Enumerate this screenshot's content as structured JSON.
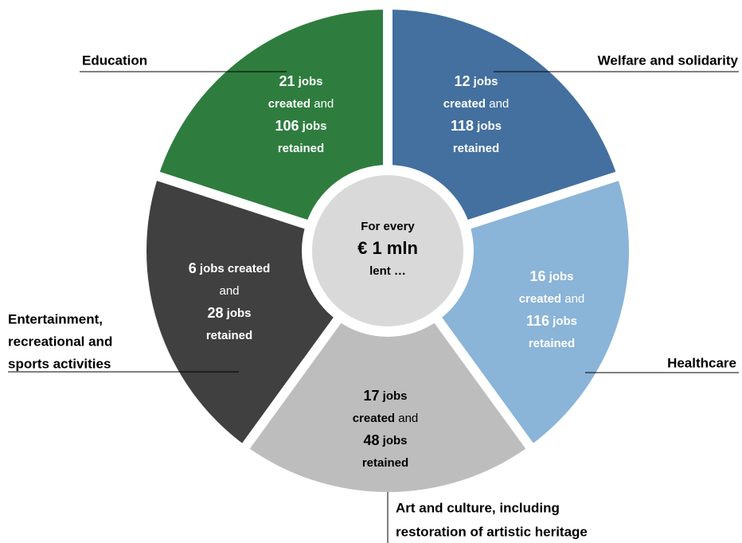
{
  "center": {
    "lines": [
      [
        {
          "text": "For every",
          "style": "bold"
        }
      ],
      [
        {
          "text": "€ 1 mln",
          "style": "big"
        }
      ],
      [
        {
          "text": "lent …",
          "style": "bold"
        }
      ]
    ]
  },
  "segments": [
    {
      "label": [
        "Welfare and solidarity"
      ],
      "color": "#43709f",
      "text_color": "#ffffff",
      "lines": [
        [
          {
            "text": "12",
            "style": "num"
          },
          {
            "text": " jobs",
            "style": "bold"
          }
        ],
        [
          {
            "text": "created",
            "style": "bold"
          },
          {
            "text": " and",
            "style": "plain"
          }
        ],
        [
          {
            "text": "118",
            "style": "num"
          },
          {
            "text": " jobs",
            "style": "bold"
          }
        ],
        [
          {
            "text": "retained",
            "style": "bold"
          }
        ]
      ]
    },
    {
      "label": [
        "Healthcare"
      ],
      "color": "#8ab4d8",
      "text_color": "#ffffff",
      "lines": [
        [
          {
            "text": "16",
            "style": "num"
          },
          {
            "text": " jobs",
            "style": "bold"
          }
        ],
        [
          {
            "text": "created",
            "style": "bold"
          },
          {
            "text": " and",
            "style": "plain"
          }
        ],
        [
          {
            "text": "116",
            "style": "num"
          },
          {
            "text": " jobs",
            "style": "bold"
          }
        ],
        [
          {
            "text": "retained",
            "style": "bold"
          }
        ]
      ]
    },
    {
      "label": [
        "Art and culture, including",
        "restoration of artistic heritage"
      ],
      "color": "#bdbdbd",
      "text_color": "#000000",
      "lines": [
        [
          {
            "text": "17",
            "style": "num"
          },
          {
            "text": " jobs",
            "style": "bold"
          }
        ],
        [
          {
            "text": "created",
            "style": "bold"
          },
          {
            "text": " and",
            "style": "plain"
          }
        ],
        [
          {
            "text": "48",
            "style": "num"
          },
          {
            "text": " jobs",
            "style": "bold"
          }
        ],
        [
          {
            "text": "retained",
            "style": "bold"
          }
        ]
      ]
    },
    {
      "label": [
        "Entertainment,",
        "recreational and",
        "sports activities"
      ],
      "color": "#404040",
      "text_color": "#ffffff",
      "lines": [
        [
          {
            "text": "6",
            "style": "num"
          },
          {
            "text": " jobs created",
            "style": "bold"
          }
        ],
        [
          {
            "text": "and",
            "style": "plain"
          }
        ],
        [
          {
            "text": "28",
            "style": "num"
          },
          {
            "text": " jobs",
            "style": "bold"
          }
        ],
        [
          {
            "text": "retained",
            "style": "bold"
          }
        ]
      ]
    },
    {
      "label": [
        "Education"
      ],
      "color": "#2e7d3e",
      "text_color": "#ffffff",
      "lines": [
        [
          {
            "text": "21",
            "style": "num"
          },
          {
            "text": " jobs",
            "style": "bold"
          }
        ],
        [
          {
            "text": "created",
            "style": "bold"
          },
          {
            "text": " and",
            "style": "plain"
          }
        ],
        [
          {
            "text": "106",
            "style": "num"
          },
          {
            "text": " jobs",
            "style": "bold"
          }
        ],
        [
          {
            "text": "retained",
            "style": "bold"
          }
        ]
      ]
    }
  ]
}
